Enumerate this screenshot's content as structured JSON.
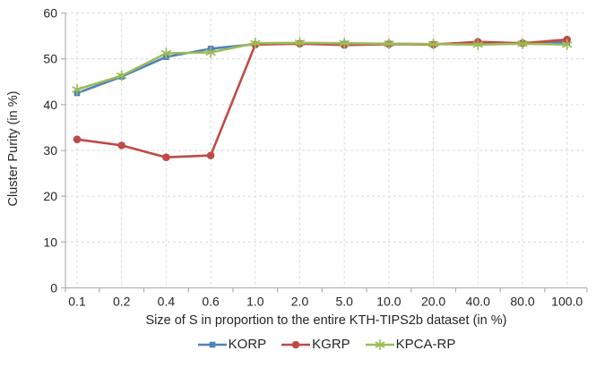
{
  "chart_data": {
    "type": "line",
    "xlabel": "Size of S in proportion to the entire KTH-TIPS2b dataset (in %)",
    "ylabel": "Cluster Purity (in %)",
    "categories": [
      "0.1",
      "0.2",
      "0.4",
      "0.6",
      "1.0",
      "2.0",
      "5.0",
      "10.0",
      "20.0",
      "40.0",
      "80.0",
      "100.0"
    ],
    "yticks": [
      "0",
      "10",
      "20",
      "30",
      "40",
      "50",
      "60"
    ],
    "ylim": [
      0,
      60
    ],
    "grid": true,
    "legend_position": "bottom",
    "series": [
      {
        "name": "KORP",
        "marker": "square",
        "color": "#4E81BD",
        "values": [
          42.5,
          46.1,
          50.4,
          52.2,
          53.2,
          53.4,
          53.3,
          53.3,
          53.2,
          53.4,
          53.4,
          53.6
        ]
      },
      {
        "name": "KGRP",
        "marker": "circle",
        "color": "#BE4B48",
        "values": [
          32.4,
          31.1,
          28.5,
          28.9,
          53.1,
          53.3,
          53.0,
          53.2,
          53.1,
          53.7,
          53.4,
          54.2
        ]
      },
      {
        "name": "KPCA-RP",
        "marker": "asterisk",
        "color": "#9BBB59",
        "values": [
          43.3,
          46.3,
          51.2,
          51.4,
          53.4,
          53.5,
          53.4,
          53.3,
          53.2,
          53.1,
          53.3,
          53.1
        ]
      }
    ],
    "colors": {
      "grid": "#DADADA",
      "axis": "#B0B0B0",
      "text": "#262626",
      "background": "#FFFFFF"
    }
  }
}
